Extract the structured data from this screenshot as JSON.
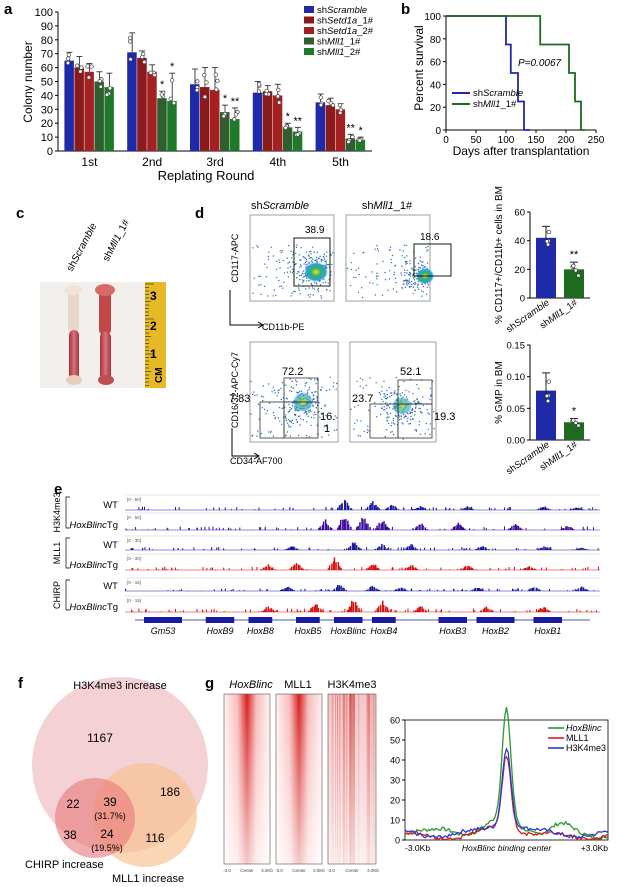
{
  "panels": {
    "a": "a",
    "b": "b",
    "c": "c",
    "d": "d",
    "e": "e",
    "f": "f",
    "g": "g"
  },
  "chart_data": [
    {
      "panel": "a",
      "type": "bar",
      "xlabel": "Replating Round",
      "ylabel": "Colony number",
      "ylim": [
        0,
        100
      ],
      "yticks": [
        "0",
        "10",
        "20",
        "30",
        "40",
        "50",
        "60",
        "70",
        "80",
        "90",
        "100"
      ],
      "categories": [
        "1st",
        "2nd",
        "3rd",
        "4th",
        "5th"
      ],
      "series": [
        {
          "name": "shScramble",
          "name_prefix": "sh",
          "name_italic": "Scramble",
          "name_suffix": "",
          "color": "#1f2aa8",
          "values": [
            65,
            71,
            48,
            42,
            35
          ],
          "errors": [
            6,
            14,
            11,
            8,
            6
          ]
        },
        {
          "name": "shSetd1a_1#",
          "name_prefix": "sh",
          "name_italic": "Setd1a",
          "name_suffix": "_1#",
          "color": "#8b1a1a",
          "values": [
            60,
            67,
            46,
            43,
            33
          ],
          "errors": [
            8,
            5,
            14,
            4,
            5
          ]
        },
        {
          "name": "shSetd1a_2#",
          "name_prefix": "sh",
          "name_italic": "Setd1a",
          "name_suffix": "_2#",
          "color": "#a52020",
          "values": [
            57,
            57,
            44,
            40,
            30
          ],
          "errors": [
            6,
            5,
            16,
            8,
            4
          ]
        },
        {
          "name": "shMll1_1#",
          "name_prefix": "sh",
          "name_italic": "Mll1",
          "name_suffix": "_1#",
          "color": "#2f5f2f",
          "values": [
            50,
            38,
            28,
            17,
            9
          ],
          "errors": [
            7,
            5,
            5,
            3,
            3
          ]
        },
        {
          "name": "shMll1_2#",
          "name_prefix": "sh",
          "name_italic": "Mll1",
          "name_suffix": "_2#",
          "color": "#1e7a2a",
          "values": [
            46,
            36,
            23,
            14,
            8
          ],
          "errors": [
            10,
            20,
            8,
            3,
            2
          ]
        }
      ],
      "significance": [
        {
          "group": 1,
          "series": 3,
          "mark": "*"
        },
        {
          "group": 1,
          "series": 4,
          "mark": "*"
        },
        {
          "group": 2,
          "series": 3,
          "mark": "*"
        },
        {
          "group": 2,
          "series": 4,
          "mark": "**"
        },
        {
          "group": 3,
          "series": 3,
          "mark": "*"
        },
        {
          "group": 3,
          "series": 4,
          "mark": "**"
        },
        {
          "group": 4,
          "series": 3,
          "mark": "**"
        },
        {
          "group": 4,
          "series": 4,
          "mark": "*"
        }
      ]
    },
    {
      "panel": "b",
      "type": "line",
      "xlabel": "Days after transplantation",
      "ylabel": "Percent survival",
      "xlim": [
        0,
        250
      ],
      "ylim": [
        0,
        100
      ],
      "xticks": [
        "0",
        "50",
        "100",
        "150",
        "200",
        "250"
      ],
      "yticks": [
        "0",
        "20",
        "40",
        "60",
        "80",
        "100"
      ],
      "annotation": "P=0.0067",
      "series": [
        {
          "name": "shScramble",
          "name_prefix": "sh",
          "name_italic": "Scramble",
          "name_suffix": "",
          "color": "#1f2aa8",
          "x": [
            0,
            100,
            100,
            108,
            108,
            120,
            120,
            130,
            130,
            140
          ],
          "y": [
            100,
            100,
            75,
            75,
            50,
            50,
            25,
            25,
            0,
            0
          ]
        },
        {
          "name": "shMll1_1#",
          "name_prefix": "sh",
          "name_italic": "Mll1",
          "name_suffix": "_1#",
          "color": "#1e6a1e",
          "x": [
            0,
            157,
            157,
            205,
            205,
            215,
            215,
            225,
            225,
            232
          ],
          "y": [
            100,
            100,
            75,
            75,
            50,
            50,
            25,
            25,
            0,
            0
          ]
        }
      ]
    },
    {
      "panel": "d-top",
      "type": "bar",
      "ylabel": "% CD117+/CD11b+ cells in BM",
      "ylim": [
        0,
        60
      ],
      "yticks": [
        "0",
        "20",
        "40",
        "60"
      ],
      "categories": [
        "shScramble",
        "shMll1_1#"
      ],
      "values": [
        42,
        20
      ],
      "errors": [
        8,
        5
      ],
      "colors": [
        "#1f2aa8",
        "#1e6a1e"
      ],
      "significance": "**"
    },
    {
      "panel": "d-bottom",
      "type": "bar",
      "ylabel": "% GMP in BM",
      "ylim": [
        0,
        0.15
      ],
      "yticks": [
        "0.00",
        "0.05",
        "0.10",
        "0.15"
      ],
      "categories": [
        "shScramble",
        "shMll1_1#"
      ],
      "values": [
        0.078,
        0.028
      ],
      "errors": [
        0.028,
        0.006
      ],
      "colors": [
        "#1f2aa8",
        "#1e6a1e"
      ],
      "significance": "*"
    },
    {
      "panel": "g",
      "type": "line",
      "xlabel": "HoxBlinc binding center",
      "xticks": [
        "-3.0Kb",
        "+3.0Kb"
      ],
      "ylim": [
        0,
        60
      ],
      "yticks": [
        "0",
        "10",
        "20",
        "30",
        "40",
        "50",
        "60"
      ],
      "series": [
        {
          "name": "HoxBlinc",
          "color": "#2a9a2a",
          "peak": 57,
          "base": 3
        },
        {
          "name": "MLL1",
          "color": "#d02020",
          "peak": 38,
          "base": 2
        },
        {
          "name": "H3K4me3",
          "color": "#2a3ad0",
          "peak": 42,
          "base": 3
        }
      ]
    }
  ],
  "panel_c": {
    "labels": [
      "shScramble",
      "shMll1_1#"
    ],
    "ruler_marks": [
      "3",
      "2",
      "1",
      "CM"
    ]
  },
  "panel_d": {
    "col_labels": {
      "left_prefix": "sh",
      "left_italic": "Scramble",
      "right_prefix": "sh",
      "right_italic": "Mll1",
      "right_suffix": "_1#"
    },
    "top_axes": {
      "y": "CD117-APC",
      "x": "CD11b-PE"
    },
    "bottom_axes": {
      "y": "CD16/32-APC-Cy7",
      "x": "CD34-AF700"
    },
    "top_gates": [
      "38.9",
      "18.6"
    ],
    "bottom_left": [
      "72.2",
      "7.83",
      "16.\n1"
    ],
    "bottom_right": [
      "52.1",
      "23.7",
      "19.3"
    ],
    "bar_xlabels": [
      "shScramble",
      "shMll1_1#"
    ]
  },
  "panel_e": {
    "groups": [
      "H3K4me3",
      "MLL1",
      "CHIRP"
    ],
    "track_labels": [
      "WT",
      "HoxBlincTg",
      "WT",
      "HoxBlincTg",
      "WT",
      "HoxBlincTg"
    ],
    "scale_labels": [
      "[0 - 50]",
      "[0 - 50]",
      "[0 - 30]",
      "[0 - 30]",
      "[0 - 15]",
      "[0 - 15]"
    ],
    "genes": [
      "Gm53",
      "HoxB9",
      "HoxB8",
      "HoxB5",
      "HoxBlinc",
      "HoxB4",
      "HoxB3",
      "HoxB2",
      "HoxB1"
    ]
  },
  "panel_f": {
    "labels": {
      "h3k4": "H3K4me3 increase",
      "chirp": "CHIRP increase",
      "mll1": "MLL1 increase"
    },
    "counts": {
      "h3k4_only": "1167",
      "h3_chirp": "22",
      "all": "39",
      "all_pct": "(31.7%)",
      "h3_mll1": "186",
      "chirp_only": "38",
      "chirp_mll1": "24",
      "chirp_mll1_pct": "(19.5%)",
      "mll1_only": "116"
    }
  },
  "panel_g": {
    "heatmap_labels": [
      "HoxBlinc",
      "MLL1",
      "H3K4me3"
    ],
    "heatmap_ticks": [
      "-3.0",
      "Center",
      "3.0Kb"
    ]
  }
}
